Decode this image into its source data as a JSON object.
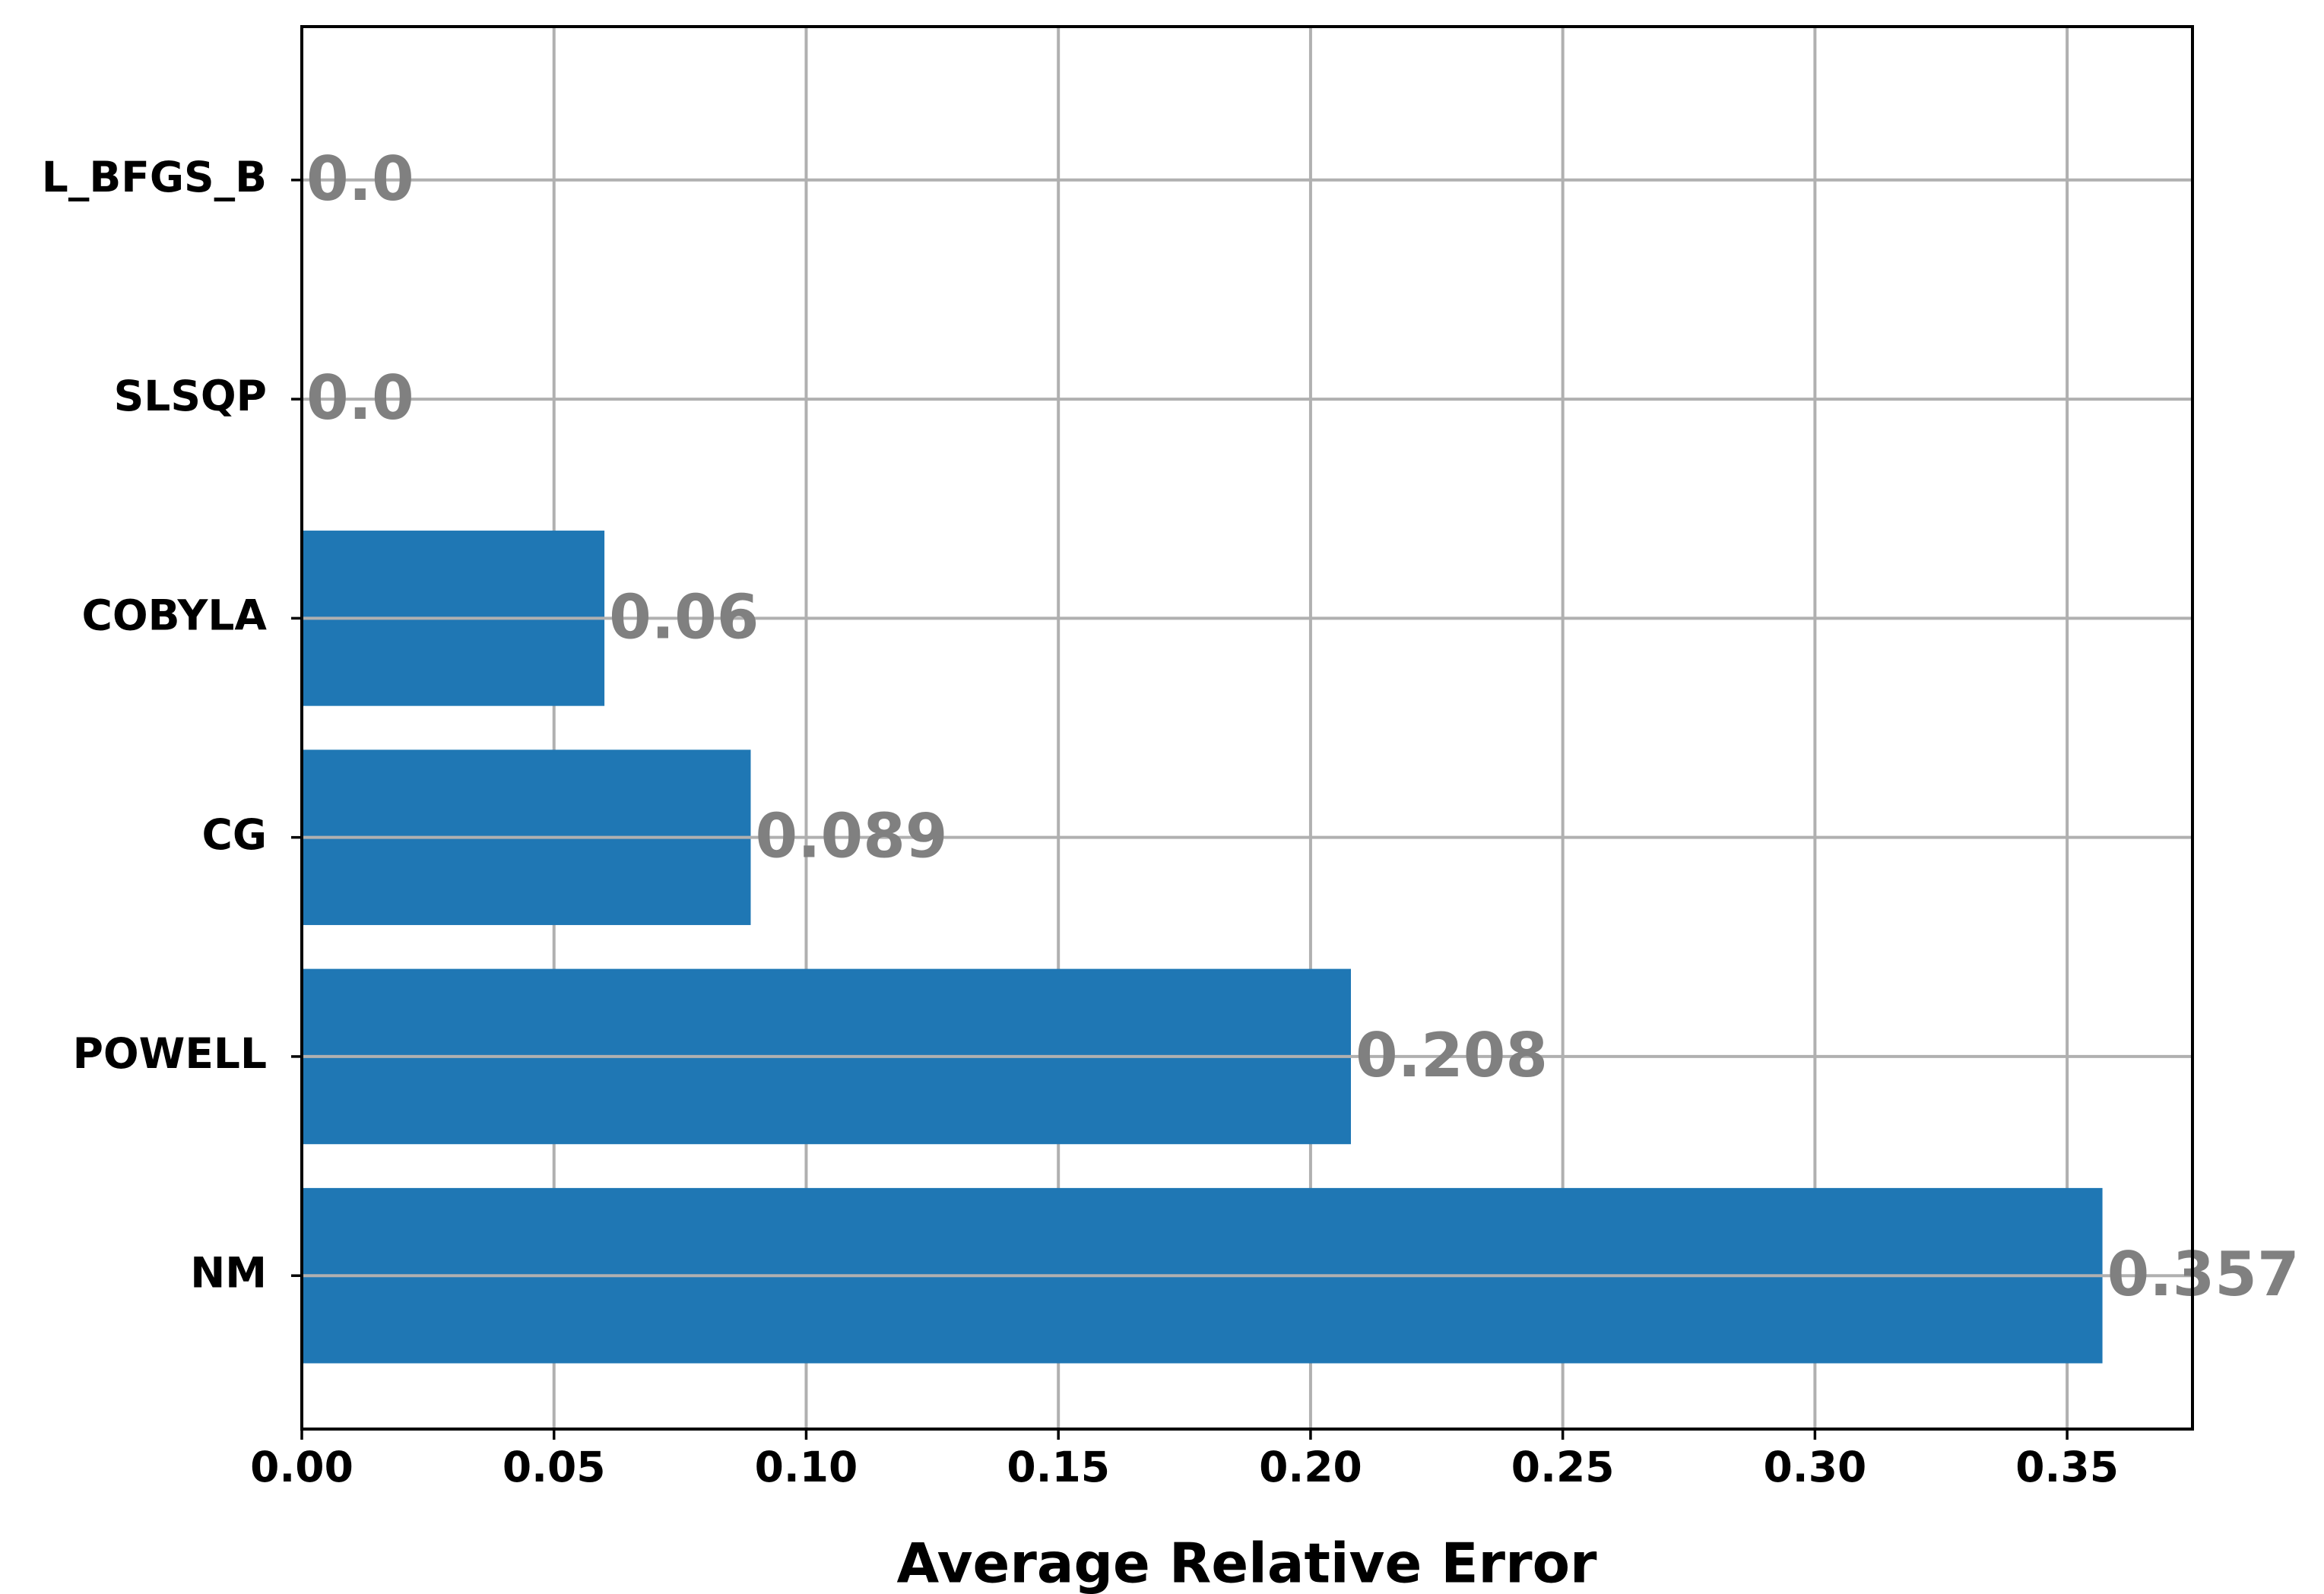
{
  "chart_data": {
    "type": "bar",
    "orientation": "horizontal",
    "x_label": "Average Relative Error",
    "categories": [
      "L_BFGS_B",
      "SLSQP",
      "COBYLA",
      "CG",
      "POWELL",
      "NM"
    ],
    "values": [
      0,
      0,
      0.06,
      0.089,
      0.208,
      0.357
    ],
    "value_labels": [
      "0.0",
      "0.0",
      "0.06",
      "0.089",
      "0.208",
      "0.357"
    ],
    "color": "#1f77b4",
    "value_label_color": "#808080",
    "xlim": [
      0,
      0.37485
    ],
    "xticks": [
      {
        "value": 0,
        "label": "0.00"
      },
      0.05,
      {
        "value": 0.1,
        "label": "0.10"
      },
      0.15,
      {
        "value": 0.2,
        "label": "0.20"
      },
      0.25,
      {
        "value": 0.3,
        "label": "0.30"
      },
      0.35
    ],
    "grid": true
  }
}
